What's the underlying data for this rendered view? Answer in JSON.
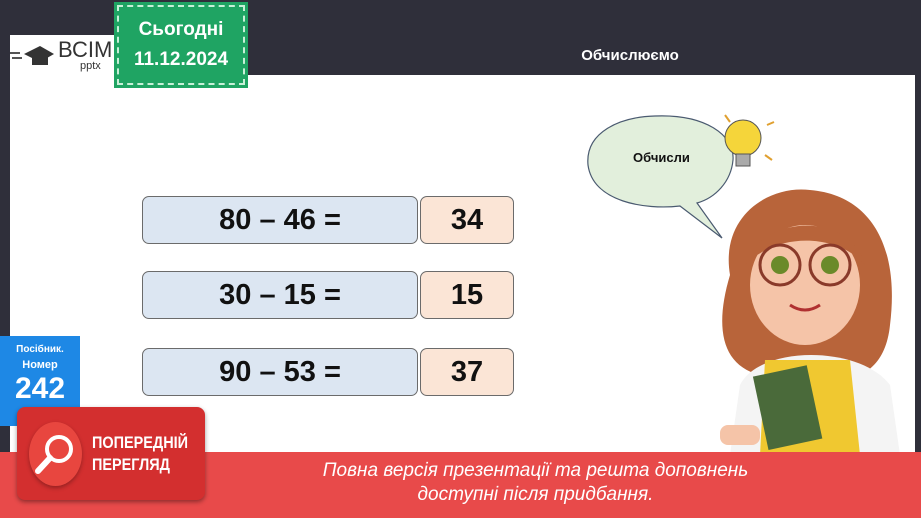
{
  "header": {
    "title": "Обчислюємо",
    "logo_main": "ВСІМ",
    "logo_sub": "pptx"
  },
  "date_badge": {
    "label": "Сьогодні",
    "date": "11.12.2024"
  },
  "exercises": [
    {
      "expression": "80 – 46 =",
      "answer": "34"
    },
    {
      "expression": "30 – 15 =",
      "answer": "15"
    },
    {
      "expression": "90 – 53 =",
      "answer": "37"
    }
  ],
  "bubble": {
    "text": "Обчисли"
  },
  "textbook": {
    "line1": "Посібник.",
    "line2": "Номер",
    "number": "242"
  },
  "preview": {
    "line1": "ПОПЕРЕДНІЙ",
    "line2": "ПЕРЕГЛЯД"
  },
  "banner": {
    "line1": "Повна версія презентації та решта доповнень",
    "line2": "доступні після придбання."
  },
  "colors": {
    "green": "#1fa463",
    "blue": "#1e88e5",
    "red": "#e84a4a",
    "eq_fill": "#dce6f2",
    "ans_fill": "#fbe5d6"
  }
}
